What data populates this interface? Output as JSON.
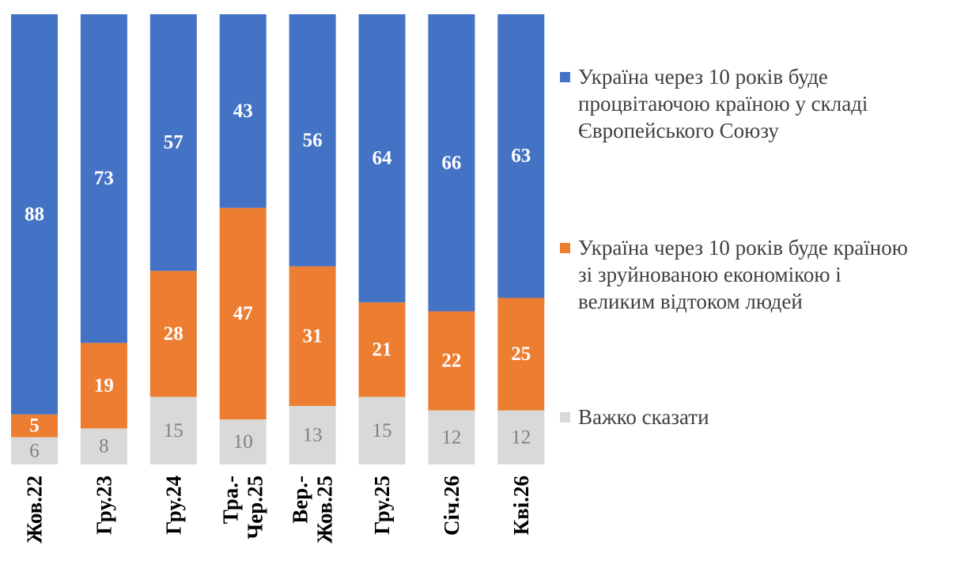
{
  "chart_data": {
    "type": "bar",
    "stacked": true,
    "categories": [
      "Жов.22",
      "Гру.23",
      "Гру.24",
      "Тра.-\nЧер.25",
      "Вер.-\nЖов.25",
      "Гру.25",
      "Січ.26",
      "Кві.26"
    ],
    "series": [
      {
        "name": "Важко сказати",
        "color": "#d9d9d9",
        "label_style": "gray",
        "values": [
          6,
          8,
          15,
          10,
          13,
          15,
          12,
          12
        ]
      },
      {
        "name": "Україна через 10 років буде країною\nзі зруйнованою економікою і\nвеликим відтоком людей",
        "color": "#ed7d31",
        "label_style": "white",
        "values": [
          5,
          19,
          28,
          47,
          31,
          21,
          22,
          25
        ]
      },
      {
        "name": "Україна через 10 років буде\nпроцвітаючою країною у складі\nЄвропейського Союзу",
        "color": "#4472c4",
        "label_style": "white",
        "values": [
          88,
          73,
          57,
          43,
          56,
          64,
          66,
          63
        ]
      }
    ],
    "legend_order": [
      2,
      1,
      0
    ],
    "ylim": [
      0,
      100
    ],
    "grid": false,
    "legend_position": "right"
  }
}
